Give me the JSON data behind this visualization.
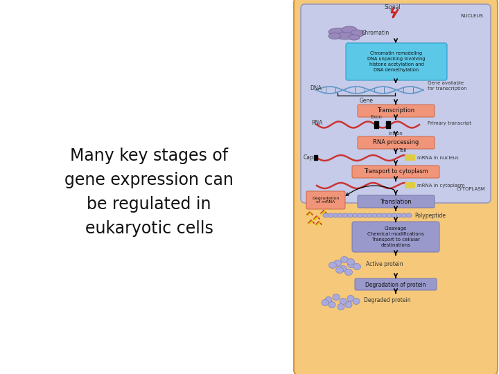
{
  "bg_outer": "#f5c87a",
  "bg_nucleus": "#c5cbe8",
  "nucleus_label": "NUCLEUS",
  "cytoplasm_label": "CYTOPLASM",
  "signal_label": "Signal",
  "left_text_lines": [
    "Many key stages of",
    "gene expression can",
    "be regulated in",
    "eukaryotic cells"
  ],
  "chromatin_box_color": "#5bc8e8",
  "chromatin_box_text": "Chromatin remodeling\nDNA unpacking involving\nhistone acetylation and\nDNA demethylation",
  "transcription_box_color": "#f0957a",
  "transcription_box_text": "Transcription",
  "rna_processing_box_color": "#f0957a",
  "rna_processing_box_text": "RNA processing",
  "transport_box_color": "#f0957a",
  "transport_box_text": "Transport to cytoplasm",
  "translation_box_color": "#9999cc",
  "translation_box_text": "Translation",
  "protein_mod_box_color": "#9999cc",
  "protein_mod_box_text": "Cleavage\nChemical modifications\nTransport to cellular\ndestinations",
  "degradation_box_color": "#9999cc",
  "degradation_box_text": "Degradation of protein",
  "degradation_mrna_box_color": "#f0957a",
  "degradation_mrna_box_text": "Degradation\nof mRNA",
  "labels": {
    "chromatin": "Chromatin",
    "dna": "DNA",
    "gene_available": "Gene available\nfor transcription",
    "gene": "Gene",
    "rna": "RNA",
    "exon": "Exon",
    "primary_transcript": "Primary transcript",
    "intron": "Intron",
    "tail": "Tail",
    "cap": "Cap",
    "mrna_nucleus": "mRNA in nucleus",
    "mrna_cytoplasm": "mRNA in cytoplasm",
    "polypeptide": "Polypeptide",
    "active_protein": "Active protein",
    "degraded_protein": "Degraded protein"
  }
}
